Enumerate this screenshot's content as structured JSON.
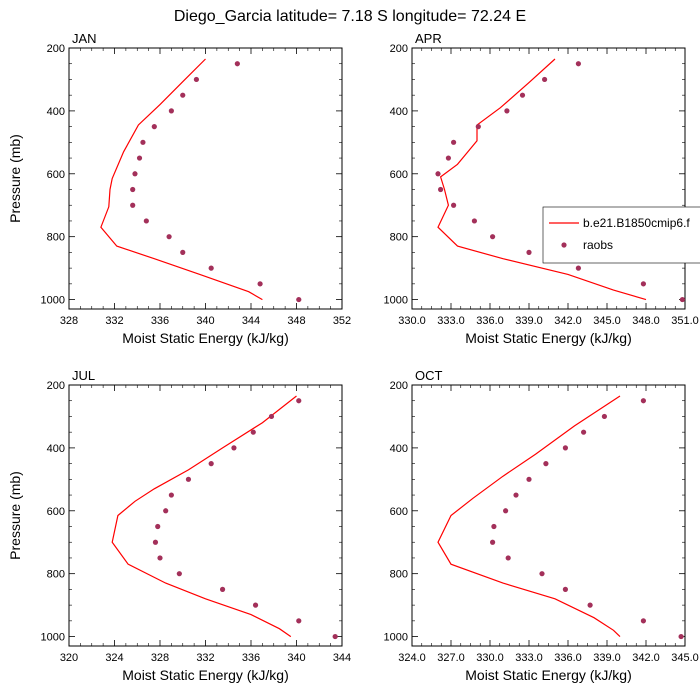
{
  "title": "Diego_Garcia  latitude= 7.18 S longitude= 72.24 E",
  "colors": {
    "model": "#ff0000",
    "obs": "#a3305a"
  },
  "legend": {
    "model_label": "b.e21.B1850cmip6.f",
    "obs_label": "raobs",
    "placement": "panel-right-edge"
  },
  "chart_data": [
    {
      "type": "line",
      "panel": "JAN",
      "xlabel": "Moist Static Energy (kJ/kg)",
      "ylabel": "Pressure (mb)",
      "xlim": [
        328,
        352
      ],
      "ylim": [
        200,
        1030
      ],
      "y_inverted": true,
      "xticks": [
        "328",
        "332",
        "336",
        "340",
        "344",
        "348",
        "352"
      ],
      "xtick_values": [
        328,
        332,
        336,
        340,
        344,
        348,
        352
      ],
      "yticks": [
        "200",
        "400",
        "600",
        "800",
        "1000"
      ],
      "ytick_values": [
        200,
        400,
        600,
        800,
        1000
      ],
      "series": [
        {
          "kind": "line",
          "points": [
            [
              340.0,
              235
            ],
            [
              338.2,
              300
            ],
            [
              336.0,
              380
            ],
            [
              334.1,
              445
            ],
            [
              332.8,
              530
            ],
            [
              331.8,
              615
            ],
            [
              331.6,
              650
            ],
            [
              331.5,
              705
            ],
            [
              330.8,
              770
            ],
            [
              332.2,
              830
            ],
            [
              335.5,
              870
            ],
            [
              339.5,
              920
            ],
            [
              343.8,
              975
            ],
            [
              345.0,
              1000
            ]
          ]
        },
        {
          "kind": "markers",
          "points": [
            [
              342.8,
              250
            ],
            [
              339.2,
              300
            ],
            [
              338.0,
              350
            ],
            [
              337.0,
              400
            ],
            [
              335.5,
              450
            ],
            [
              334.5,
              500
            ],
            [
              334.2,
              550
            ],
            [
              333.8,
              600
            ],
            [
              333.6,
              650
            ],
            [
              333.6,
              700
            ],
            [
              334.8,
              750
            ],
            [
              336.8,
              800
            ],
            [
              338.0,
              850
            ],
            [
              340.5,
              900
            ],
            [
              344.8,
              950
            ],
            [
              348.2,
              1000
            ]
          ]
        }
      ]
    },
    {
      "type": "line",
      "panel": "APR",
      "xlabel": "Moist Static Energy (kJ/kg)",
      "ylabel": "",
      "xlim": [
        330,
        351
      ],
      "ylim": [
        200,
        1030
      ],
      "y_inverted": true,
      "xticks": [
        "330.0",
        "333.0",
        "336.0",
        "339.0",
        "342.0",
        "345.0",
        "348.0",
        "351.0"
      ],
      "xtick_values": [
        330,
        333,
        336,
        339,
        342,
        345,
        348,
        351
      ],
      "yticks": [
        "200",
        "400",
        "600",
        "800",
        "1000"
      ],
      "ytick_values": [
        200,
        400,
        600,
        800,
        1000
      ],
      "series": [
        {
          "kind": "line",
          "points": [
            [
              341.0,
              235
            ],
            [
              339.0,
              310
            ],
            [
              336.8,
              390
            ],
            [
              335.0,
              445
            ],
            [
              335.0,
              495
            ],
            [
              334.3,
              530
            ],
            [
              333.5,
              570
            ],
            [
              332.2,
              610
            ],
            [
              332.5,
              650
            ],
            [
              332.8,
              700
            ],
            [
              332.0,
              770
            ],
            [
              333.5,
              830
            ],
            [
              337.0,
              870
            ],
            [
              342.0,
              920
            ],
            [
              345.5,
              970
            ],
            [
              348.0,
              1000
            ]
          ]
        },
        {
          "kind": "markers",
          "points": [
            [
              342.8,
              250
            ],
            [
              340.2,
              300
            ],
            [
              338.5,
              350
            ],
            [
              337.3,
              400
            ],
            [
              335.1,
              450
            ],
            [
              333.2,
              500
            ],
            [
              332.8,
              550
            ],
            [
              332.0,
              600
            ],
            [
              332.2,
              650
            ],
            [
              333.2,
              700
            ],
            [
              334.8,
              750
            ],
            [
              336.2,
              800
            ],
            [
              339.0,
              850
            ],
            [
              342.8,
              900
            ],
            [
              347.8,
              950
            ],
            [
              350.8,
              1000
            ]
          ]
        }
      ]
    },
    {
      "type": "line",
      "panel": "JUL",
      "xlabel": "Moist Static Energy (kJ/kg)",
      "ylabel": "Pressure (mb)",
      "xlim": [
        320,
        344
      ],
      "ylim": [
        200,
        1030
      ],
      "y_inverted": true,
      "xticks": [
        "320",
        "324",
        "328",
        "332",
        "336",
        "340",
        "344"
      ],
      "xtick_values": [
        320,
        324,
        328,
        332,
        336,
        340,
        344
      ],
      "yticks": [
        "200",
        "400",
        "600",
        "800",
        "1000"
      ],
      "ytick_values": [
        200,
        400,
        600,
        800,
        1000
      ],
      "series": [
        {
          "kind": "line",
          "points": [
            [
              340.0,
              235
            ],
            [
              337.0,
              320
            ],
            [
              333.5,
              400
            ],
            [
              330.5,
              470
            ],
            [
              327.5,
              530
            ],
            [
              325.8,
              570
            ],
            [
              324.3,
              615
            ],
            [
              323.8,
              700
            ],
            [
              325.2,
              770
            ],
            [
              328.5,
              830
            ],
            [
              332.0,
              880
            ],
            [
              336.0,
              930
            ],
            [
              338.5,
              975
            ],
            [
              339.5,
              1000
            ]
          ]
        },
        {
          "kind": "markers",
          "points": [
            [
              340.2,
              250
            ],
            [
              337.8,
              300
            ],
            [
              336.2,
              350
            ],
            [
              334.5,
              400
            ],
            [
              332.5,
              450
            ],
            [
              330.5,
              500
            ],
            [
              329.0,
              550
            ],
            [
              328.5,
              600
            ],
            [
              327.8,
              650
            ],
            [
              327.6,
              700
            ],
            [
              328.0,
              750
            ],
            [
              329.7,
              800
            ],
            [
              333.5,
              850
            ],
            [
              336.4,
              900
            ],
            [
              340.2,
              950
            ],
            [
              343.4,
              1000
            ]
          ]
        }
      ]
    },
    {
      "type": "line",
      "panel": "OCT",
      "xlabel": "Moist Static Energy (kJ/kg)",
      "ylabel": "",
      "xlim": [
        324,
        345
      ],
      "ylim": [
        200,
        1030
      ],
      "y_inverted": true,
      "xticks": [
        "324.0",
        "327.0",
        "330.0",
        "333.0",
        "336.0",
        "339.0",
        "342.0",
        "345.0"
      ],
      "xtick_values": [
        324,
        327,
        330,
        333,
        336,
        339,
        342,
        345
      ],
      "yticks": [
        "200",
        "400",
        "600",
        "800",
        "1000"
      ],
      "ytick_values": [
        200,
        400,
        600,
        800,
        1000
      ],
      "series": [
        {
          "kind": "line",
          "points": [
            [
              340.0,
              235
            ],
            [
              336.5,
              330
            ],
            [
              333.5,
              420
            ],
            [
              331.0,
              490
            ],
            [
              328.7,
              560
            ],
            [
              327.0,
              615
            ],
            [
              326.0,
              700
            ],
            [
              327.0,
              770
            ],
            [
              331.0,
              830
            ],
            [
              335.0,
              880
            ],
            [
              338.0,
              940
            ],
            [
              339.5,
              980
            ],
            [
              340.0,
              1000
            ]
          ]
        },
        {
          "kind": "markers",
          "points": [
            [
              341.8,
              250
            ],
            [
              338.8,
              300
            ],
            [
              337.2,
              350
            ],
            [
              335.8,
              400
            ],
            [
              334.3,
              450
            ],
            [
              333.0,
              500
            ],
            [
              332.0,
              550
            ],
            [
              331.2,
              600
            ],
            [
              330.3,
              650
            ],
            [
              330.2,
              700
            ],
            [
              331.4,
              750
            ],
            [
              334.0,
              800
            ],
            [
              335.8,
              850
            ],
            [
              337.7,
              900
            ],
            [
              341.8,
              950
            ],
            [
              344.7,
              1000
            ]
          ]
        }
      ]
    }
  ]
}
